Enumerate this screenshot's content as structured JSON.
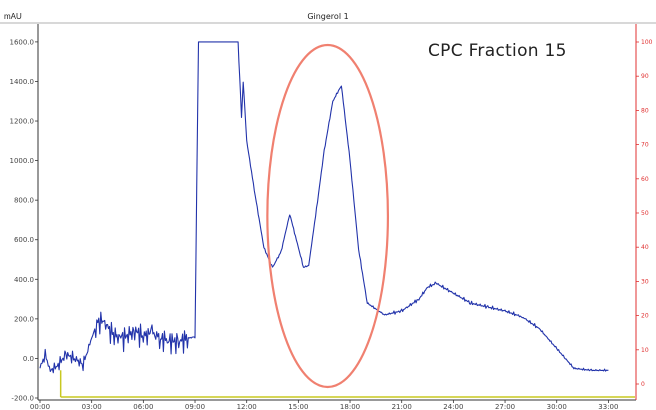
{
  "chart_data": {
    "type": "line",
    "title": "Gingerol 1",
    "ylabel": "mAU",
    "annotation": "CPC Fraction 15",
    "xlim": [
      0,
      33.5
    ],
    "ylim": [
      -200,
      1650
    ],
    "x_ticks": [
      "00:00",
      "03:00",
      "06:00",
      "09:00",
      "12:00",
      "15:00",
      "18:00",
      "21:00",
      "24:00",
      "27:00",
      "30:00",
      "33:00"
    ],
    "y_ticks": [
      "-200.0",
      "0.0",
      "200.0",
      "400.0",
      "600.0",
      "800.0",
      "1000.0",
      "1200.0",
      "1400.0",
      "1600.0"
    ],
    "right_ticks": [
      "0",
      "10",
      "20",
      "30",
      "40",
      "50",
      "60",
      "70",
      "80",
      "90",
      "100"
    ],
    "series": [
      {
        "color": "#2233aa",
        "x": [
          0,
          0.3,
          0.6,
          1.0,
          1.5,
          2.0,
          2.5,
          3.0,
          3.3,
          3.7,
          4.2,
          4.8,
          5.5,
          6.0,
          6.5,
          7.0,
          7.5,
          8.0,
          8.5,
          9.0,
          9.2,
          9.5,
          10.0,
          11.0,
          11.5,
          11.7,
          11.8,
          12.0,
          12.5,
          13.0,
          13.5,
          14.0,
          14.5,
          15.0,
          15.3,
          15.6,
          16.0,
          16.5,
          17.0,
          17.5,
          18.0,
          18.5,
          19.0,
          20.0,
          21.0,
          22.0,
          22.5,
          23.0,
          24.0,
          25.0,
          26.0,
          27.0,
          28.0,
          29.0,
          30.0,
          30.5,
          31.0,
          32.0,
          33.0
        ],
        "y": [
          -50,
          20,
          -60,
          -40,
          20,
          0,
          -30,
          100,
          180,
          190,
          120,
          100,
          140,
          110,
          130,
          100,
          90,
          80,
          100,
          110,
          1600,
          1600,
          1600,
          1600,
          1600,
          1220,
          1400,
          1100,
          820,
          560,
          460,
          540,
          730,
          560,
          460,
          470,
          720,
          1050,
          1300,
          1380,
          1000,
          550,
          280,
          220,
          240,
          300,
          360,
          380,
          330,
          280,
          260,
          240,
          210,
          150,
          50,
          0,
          -50,
          -60,
          -60
        ]
      }
    ],
    "baseline": {
      "color": "#c8c820",
      "y": -200
    },
    "highlight": {
      "shape": "ellipse",
      "color": "#f08070",
      "x_center": 16.7,
      "y_center": 725,
      "x_radius": 3.5,
      "y_radius": 1700
    }
  }
}
